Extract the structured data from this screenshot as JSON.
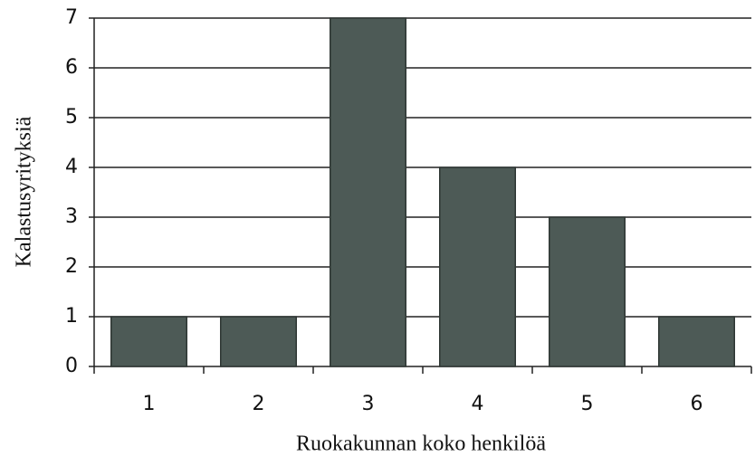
{
  "chart_data": {
    "type": "bar",
    "x_label": "Ruokakunnan koko henkilöä",
    "y_label": "Kalastusyrityksiä",
    "categories": [
      "1",
      "2",
      "3",
      "4",
      "5",
      "6"
    ],
    "values": [
      1,
      1,
      7,
      4,
      3,
      1
    ],
    "color": "#4d5a56",
    "ylim": [
      0,
      7
    ],
    "yticks": [
      0,
      1,
      2,
      3,
      4,
      5,
      6,
      7
    ],
    "grid": true
  }
}
